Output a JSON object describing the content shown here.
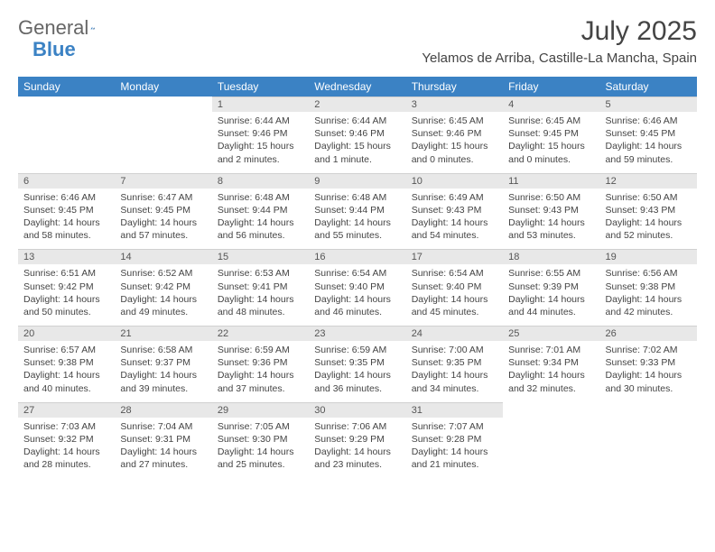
{
  "brand": {
    "part1": "General",
    "part2": "Blue"
  },
  "title": "July 2025",
  "location": "Yelamos de Arriba, Castille-La Mancha, Spain",
  "colors": {
    "header_bg": "#3b82c4",
    "header_text": "#ffffff",
    "daynum_bg": "#e8e8e8",
    "text": "#444444",
    "brand_gray": "#666666",
    "brand_blue": "#3b82c4"
  },
  "day_headers": [
    "Sunday",
    "Monday",
    "Tuesday",
    "Wednesday",
    "Thursday",
    "Friday",
    "Saturday"
  ],
  "weeks": [
    [
      null,
      null,
      {
        "n": "1",
        "sunrise": "6:44 AM",
        "sunset": "9:46 PM",
        "daylight": "15 hours and 2 minutes."
      },
      {
        "n": "2",
        "sunrise": "6:44 AM",
        "sunset": "9:46 PM",
        "daylight": "15 hours and 1 minute."
      },
      {
        "n": "3",
        "sunrise": "6:45 AM",
        "sunset": "9:46 PM",
        "daylight": "15 hours and 0 minutes."
      },
      {
        "n": "4",
        "sunrise": "6:45 AM",
        "sunset": "9:45 PM",
        "daylight": "15 hours and 0 minutes."
      },
      {
        "n": "5",
        "sunrise": "6:46 AM",
        "sunset": "9:45 PM",
        "daylight": "14 hours and 59 minutes."
      }
    ],
    [
      {
        "n": "6",
        "sunrise": "6:46 AM",
        "sunset": "9:45 PM",
        "daylight": "14 hours and 58 minutes."
      },
      {
        "n": "7",
        "sunrise": "6:47 AM",
        "sunset": "9:45 PM",
        "daylight": "14 hours and 57 minutes."
      },
      {
        "n": "8",
        "sunrise": "6:48 AM",
        "sunset": "9:44 PM",
        "daylight": "14 hours and 56 minutes."
      },
      {
        "n": "9",
        "sunrise": "6:48 AM",
        "sunset": "9:44 PM",
        "daylight": "14 hours and 55 minutes."
      },
      {
        "n": "10",
        "sunrise": "6:49 AM",
        "sunset": "9:43 PM",
        "daylight": "14 hours and 54 minutes."
      },
      {
        "n": "11",
        "sunrise": "6:50 AM",
        "sunset": "9:43 PM",
        "daylight": "14 hours and 53 minutes."
      },
      {
        "n": "12",
        "sunrise": "6:50 AM",
        "sunset": "9:43 PM",
        "daylight": "14 hours and 52 minutes."
      }
    ],
    [
      {
        "n": "13",
        "sunrise": "6:51 AM",
        "sunset": "9:42 PM",
        "daylight": "14 hours and 50 minutes."
      },
      {
        "n": "14",
        "sunrise": "6:52 AM",
        "sunset": "9:42 PM",
        "daylight": "14 hours and 49 minutes."
      },
      {
        "n": "15",
        "sunrise": "6:53 AM",
        "sunset": "9:41 PM",
        "daylight": "14 hours and 48 minutes."
      },
      {
        "n": "16",
        "sunrise": "6:54 AM",
        "sunset": "9:40 PM",
        "daylight": "14 hours and 46 minutes."
      },
      {
        "n": "17",
        "sunrise": "6:54 AM",
        "sunset": "9:40 PM",
        "daylight": "14 hours and 45 minutes."
      },
      {
        "n": "18",
        "sunrise": "6:55 AM",
        "sunset": "9:39 PM",
        "daylight": "14 hours and 44 minutes."
      },
      {
        "n": "19",
        "sunrise": "6:56 AM",
        "sunset": "9:38 PM",
        "daylight": "14 hours and 42 minutes."
      }
    ],
    [
      {
        "n": "20",
        "sunrise": "6:57 AM",
        "sunset": "9:38 PM",
        "daylight": "14 hours and 40 minutes."
      },
      {
        "n": "21",
        "sunrise": "6:58 AM",
        "sunset": "9:37 PM",
        "daylight": "14 hours and 39 minutes."
      },
      {
        "n": "22",
        "sunrise": "6:59 AM",
        "sunset": "9:36 PM",
        "daylight": "14 hours and 37 minutes."
      },
      {
        "n": "23",
        "sunrise": "6:59 AM",
        "sunset": "9:35 PM",
        "daylight": "14 hours and 36 minutes."
      },
      {
        "n": "24",
        "sunrise": "7:00 AM",
        "sunset": "9:35 PM",
        "daylight": "14 hours and 34 minutes."
      },
      {
        "n": "25",
        "sunrise": "7:01 AM",
        "sunset": "9:34 PM",
        "daylight": "14 hours and 32 minutes."
      },
      {
        "n": "26",
        "sunrise": "7:02 AM",
        "sunset": "9:33 PM",
        "daylight": "14 hours and 30 minutes."
      }
    ],
    [
      {
        "n": "27",
        "sunrise": "7:03 AM",
        "sunset": "9:32 PM",
        "daylight": "14 hours and 28 minutes."
      },
      {
        "n": "28",
        "sunrise": "7:04 AM",
        "sunset": "9:31 PM",
        "daylight": "14 hours and 27 minutes."
      },
      {
        "n": "29",
        "sunrise": "7:05 AM",
        "sunset": "9:30 PM",
        "daylight": "14 hours and 25 minutes."
      },
      {
        "n": "30",
        "sunrise": "7:06 AM",
        "sunset": "9:29 PM",
        "daylight": "14 hours and 23 minutes."
      },
      {
        "n": "31",
        "sunrise": "7:07 AM",
        "sunset": "9:28 PM",
        "daylight": "14 hours and 21 minutes."
      },
      null,
      null
    ]
  ],
  "labels": {
    "sunrise_prefix": "Sunrise: ",
    "sunset_prefix": "Sunset: ",
    "daylight_prefix": "Daylight: "
  }
}
